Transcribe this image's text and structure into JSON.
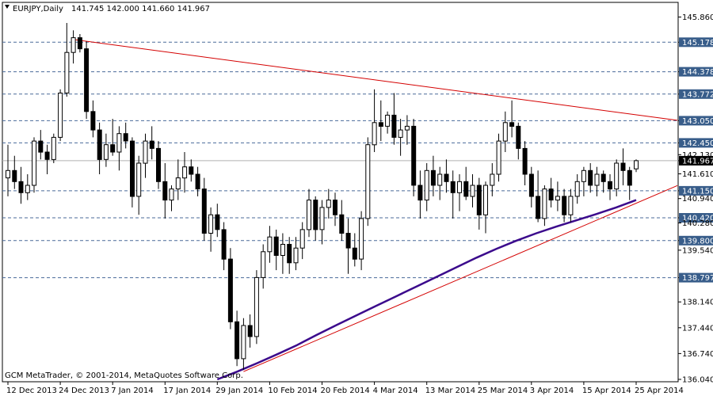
{
  "header": {
    "symbol_tf": "EURJPY,Daily",
    "ohlc": "141.745 142.000 141.660 141.967"
  },
  "footer": {
    "copyright": "GCM MetaTrader, © 2001-2014, MetaQuotes Software Corp."
  },
  "colors": {
    "candle_up": "#ffffff",
    "candle_down": "#000000",
    "candle_outline": "#000000",
    "trendline": "#d40000",
    "moving_average": "#3b0a8c",
    "level_line": "#4a6a99",
    "level_label_bg": "#385d8a",
    "current_price_bg": "#000000"
  },
  "chart_data": {
    "type": "candlestick",
    "title": "EURJPY,Daily",
    "ylim": [
      136.04,
      146.0
    ],
    "y_ticks": [
      "145.860",
      "145.178",
      "144.378",
      "143.772",
      "143.050",
      "142.450",
      "142.130",
      "141.967",
      "141.610",
      "141.150",
      "140.940",
      "140.420",
      "140.280",
      "139.800",
      "139.540",
      "138.797",
      "138.140",
      "137.440",
      "136.740",
      "136.040"
    ],
    "x_ticks": [
      "12 Dec 2013",
      "24 Dec 2013",
      "7 Jan 2014",
      "17 Jan 2014",
      "29 Jan 2014",
      "10 Feb 2014",
      "20 Feb 2014",
      "4 Mar 2014",
      "13 Mar 2014",
      "25 Mar 2014",
      "3 Apr 2014",
      "15 Apr 2014",
      "25 Apr 2014"
    ],
    "levels": [
      145.178,
      144.378,
      143.772,
      143.05,
      142.45,
      141.15,
      140.42,
      139.8,
      138.797
    ],
    "current_price": 141.967,
    "candles": [
      {
        "o": 141.5,
        "h": 142.4,
        "l": 141.0,
        "c": 141.7
      },
      {
        "o": 141.7,
        "h": 142.1,
        "l": 141.2,
        "c": 141.4
      },
      {
        "o": 141.4,
        "h": 141.8,
        "l": 140.8,
        "c": 141.1
      },
      {
        "o": 141.1,
        "h": 141.6,
        "l": 140.9,
        "c": 141.3
      },
      {
        "o": 141.3,
        "h": 142.6,
        "l": 141.1,
        "c": 142.5
      },
      {
        "o": 142.5,
        "h": 142.8,
        "l": 142.0,
        "c": 142.2
      },
      {
        "o": 142.2,
        "h": 142.4,
        "l": 141.6,
        "c": 142.0
      },
      {
        "o": 142.0,
        "h": 142.7,
        "l": 141.9,
        "c": 142.6
      },
      {
        "o": 142.6,
        "h": 143.9,
        "l": 142.5,
        "c": 143.8
      },
      {
        "o": 143.8,
        "h": 145.7,
        "l": 143.7,
        "c": 144.9
      },
      {
        "o": 144.9,
        "h": 145.5,
        "l": 144.6,
        "c": 145.3
      },
      {
        "o": 145.3,
        "h": 145.4,
        "l": 144.9,
        "c": 145.0
      },
      {
        "o": 145.0,
        "h": 145.2,
        "l": 143.1,
        "c": 143.3
      },
      {
        "o": 143.3,
        "h": 143.6,
        "l": 142.6,
        "c": 142.8
      },
      {
        "o": 142.8,
        "h": 143.0,
        "l": 141.6,
        "c": 142.0
      },
      {
        "o": 142.0,
        "h": 142.7,
        "l": 141.8,
        "c": 142.4
      },
      {
        "o": 142.4,
        "h": 143.1,
        "l": 142.1,
        "c": 142.2
      },
      {
        "o": 142.2,
        "h": 142.9,
        "l": 141.7,
        "c": 142.7
      },
      {
        "o": 142.7,
        "h": 143.0,
        "l": 142.3,
        "c": 142.5
      },
      {
        "o": 142.5,
        "h": 142.6,
        "l": 140.7,
        "c": 141.0
      },
      {
        "o": 141.0,
        "h": 142.1,
        "l": 140.5,
        "c": 141.9
      },
      {
        "o": 141.9,
        "h": 142.7,
        "l": 141.5,
        "c": 142.5
      },
      {
        "o": 142.5,
        "h": 142.9,
        "l": 142.0,
        "c": 142.3
      },
      {
        "o": 142.3,
        "h": 142.5,
        "l": 141.2,
        "c": 141.4
      },
      {
        "o": 141.4,
        "h": 141.9,
        "l": 140.4,
        "c": 140.9
      },
      {
        "o": 140.9,
        "h": 141.3,
        "l": 140.6,
        "c": 141.2
      },
      {
        "o": 141.2,
        "h": 142.0,
        "l": 140.9,
        "c": 141.5
      },
      {
        "o": 141.5,
        "h": 142.2,
        "l": 141.1,
        "c": 141.8
      },
      {
        "o": 141.8,
        "h": 142.0,
        "l": 141.4,
        "c": 141.6
      },
      {
        "o": 141.6,
        "h": 141.8,
        "l": 141.0,
        "c": 141.2
      },
      {
        "o": 141.2,
        "h": 141.5,
        "l": 139.8,
        "c": 140.0
      },
      {
        "o": 140.0,
        "h": 140.7,
        "l": 139.5,
        "c": 140.5
      },
      {
        "o": 140.5,
        "h": 140.8,
        "l": 139.9,
        "c": 140.1
      },
      {
        "o": 140.1,
        "h": 140.3,
        "l": 139.0,
        "c": 139.3
      },
      {
        "o": 139.3,
        "h": 139.6,
        "l": 137.4,
        "c": 137.6
      },
      {
        "o": 137.6,
        "h": 137.9,
        "l": 136.4,
        "c": 136.6
      },
      {
        "o": 136.6,
        "h": 137.7,
        "l": 136.3,
        "c": 137.5
      },
      {
        "o": 137.5,
        "h": 137.8,
        "l": 136.9,
        "c": 137.2
      },
      {
        "o": 137.2,
        "h": 139.0,
        "l": 137.0,
        "c": 138.8
      },
      {
        "o": 138.8,
        "h": 139.7,
        "l": 138.5,
        "c": 139.5
      },
      {
        "o": 139.5,
        "h": 140.2,
        "l": 139.2,
        "c": 139.9
      },
      {
        "o": 139.9,
        "h": 140.1,
        "l": 139.0,
        "c": 139.4
      },
      {
        "o": 139.4,
        "h": 140.0,
        "l": 138.9,
        "c": 139.7
      },
      {
        "o": 139.7,
        "h": 139.9,
        "l": 138.9,
        "c": 139.2
      },
      {
        "o": 139.2,
        "h": 139.9,
        "l": 139.0,
        "c": 139.6
      },
      {
        "o": 139.6,
        "h": 140.3,
        "l": 139.3,
        "c": 140.1
      },
      {
        "o": 140.1,
        "h": 141.2,
        "l": 139.9,
        "c": 140.9
      },
      {
        "o": 140.9,
        "h": 141.0,
        "l": 139.8,
        "c": 140.1
      },
      {
        "o": 140.1,
        "h": 140.9,
        "l": 139.7,
        "c": 140.7
      },
      {
        "o": 140.7,
        "h": 141.2,
        "l": 140.4,
        "c": 140.9
      },
      {
        "o": 140.9,
        "h": 141.1,
        "l": 140.2,
        "c": 140.5
      },
      {
        "o": 140.5,
        "h": 140.9,
        "l": 139.8,
        "c": 140.0
      },
      {
        "o": 140.0,
        "h": 140.4,
        "l": 138.9,
        "c": 139.6
      },
      {
        "o": 139.6,
        "h": 140.0,
        "l": 139.1,
        "c": 139.3
      },
      {
        "o": 139.3,
        "h": 140.6,
        "l": 139.0,
        "c": 140.4
      },
      {
        "o": 140.4,
        "h": 142.6,
        "l": 140.2,
        "c": 142.4
      },
      {
        "o": 142.4,
        "h": 143.9,
        "l": 142.2,
        "c": 143.0
      },
      {
        "o": 143.0,
        "h": 143.6,
        "l": 142.5,
        "c": 142.9
      },
      {
        "o": 142.9,
        "h": 143.3,
        "l": 142.7,
        "c": 143.2
      },
      {
        "o": 143.2,
        "h": 143.8,
        "l": 142.4,
        "c": 142.6
      },
      {
        "o": 142.6,
        "h": 143.1,
        "l": 142.1,
        "c": 142.8
      },
      {
        "o": 142.8,
        "h": 143.2,
        "l": 142.4,
        "c": 142.9
      },
      {
        "o": 142.9,
        "h": 143.1,
        "l": 141.0,
        "c": 141.3
      },
      {
        "o": 141.3,
        "h": 141.7,
        "l": 140.4,
        "c": 140.9
      },
      {
        "o": 140.9,
        "h": 141.9,
        "l": 140.6,
        "c": 141.7
      },
      {
        "o": 141.7,
        "h": 142.1,
        "l": 141.0,
        "c": 141.3
      },
      {
        "o": 141.3,
        "h": 141.8,
        "l": 140.9,
        "c": 141.6
      },
      {
        "o": 141.6,
        "h": 142.0,
        "l": 141.1,
        "c": 141.4
      },
      {
        "o": 141.4,
        "h": 141.7,
        "l": 140.4,
        "c": 141.1
      },
      {
        "o": 141.1,
        "h": 141.6,
        "l": 140.6,
        "c": 141.4
      },
      {
        "o": 141.4,
        "h": 141.8,
        "l": 140.9,
        "c": 141.0
      },
      {
        "o": 141.0,
        "h": 141.6,
        "l": 140.7,
        "c": 141.3
      },
      {
        "o": 141.3,
        "h": 141.5,
        "l": 140.1,
        "c": 140.5
      },
      {
        "o": 140.5,
        "h": 141.4,
        "l": 140.0,
        "c": 141.3
      },
      {
        "o": 141.3,
        "h": 141.9,
        "l": 141.0,
        "c": 141.6
      },
      {
        "o": 141.6,
        "h": 142.7,
        "l": 141.4,
        "c": 142.5
      },
      {
        "o": 142.5,
        "h": 143.3,
        "l": 142.2,
        "c": 143.0
      },
      {
        "o": 143.0,
        "h": 143.6,
        "l": 142.6,
        "c": 142.9
      },
      {
        "o": 142.9,
        "h": 143.0,
        "l": 142.0,
        "c": 142.3
      },
      {
        "o": 142.3,
        "h": 142.5,
        "l": 141.3,
        "c": 141.6
      },
      {
        "o": 141.6,
        "h": 141.8,
        "l": 140.7,
        "c": 141.0
      },
      {
        "o": 141.0,
        "h": 141.7,
        "l": 140.3,
        "c": 140.4
      },
      {
        "o": 140.4,
        "h": 141.3,
        "l": 140.2,
        "c": 141.2
      },
      {
        "o": 141.2,
        "h": 141.5,
        "l": 140.7,
        "c": 140.9
      },
      {
        "o": 140.9,
        "h": 141.4,
        "l": 140.6,
        "c": 141.0
      },
      {
        "o": 141.0,
        "h": 141.2,
        "l": 140.3,
        "c": 140.5
      },
      {
        "o": 140.5,
        "h": 141.2,
        "l": 140.3,
        "c": 141.0
      },
      {
        "o": 141.0,
        "h": 141.6,
        "l": 140.8,
        "c": 141.4
      },
      {
        "o": 141.4,
        "h": 141.8,
        "l": 141.0,
        "c": 141.7
      },
      {
        "o": 141.7,
        "h": 141.9,
        "l": 141.1,
        "c": 141.3
      },
      {
        "o": 141.3,
        "h": 141.8,
        "l": 141.0,
        "c": 141.6
      },
      {
        "o": 141.6,
        "h": 141.7,
        "l": 141.1,
        "c": 141.4
      },
      {
        "o": 141.4,
        "h": 141.6,
        "l": 140.9,
        "c": 141.2
      },
      {
        "o": 141.2,
        "h": 142.0,
        "l": 141.0,
        "c": 141.9
      },
      {
        "o": 141.9,
        "h": 142.3,
        "l": 141.3,
        "c": 141.7
      },
      {
        "o": 141.7,
        "h": 141.8,
        "l": 140.9,
        "c": 141.3
      },
      {
        "o": 141.745,
        "h": 142.0,
        "l": 141.66,
        "c": 141.967
      }
    ],
    "moving_average": [
      136.04,
      136.25,
      136.48,
      136.72,
      136.97,
      137.25,
      137.52,
      137.78,
      138.04,
      138.3,
      138.56,
      138.82,
      139.08,
      139.34,
      139.58,
      139.8,
      140.0,
      140.18,
      140.35,
      140.52,
      140.7,
      140.9
    ],
    "trendline_resistance": {
      "from": [
        10,
        145.25
      ],
      "to": [
        107,
        142.95
      ]
    },
    "trendline_support": {
      "from": [
        36,
        136.25
      ],
      "to": [
        107,
        141.65
      ]
    }
  }
}
